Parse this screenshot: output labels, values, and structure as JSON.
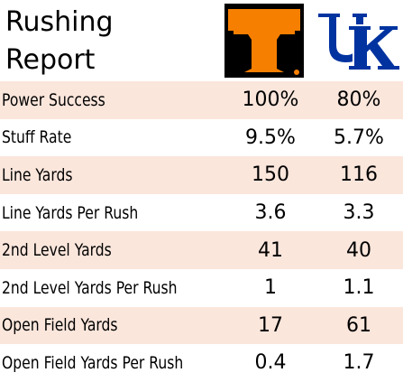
{
  "title_line1": "Rushing",
  "title_line2": "Report",
  "teams": [
    {
      "logo": "tennessee-power-t-logo",
      "color": "#f77f00"
    },
    {
      "logo": "kentucky-uk-logo",
      "color": "#0033a0"
    }
  ],
  "rows": [
    {
      "label": "Power Success",
      "tn": "100%",
      "uk": "80%"
    },
    {
      "label": "Stuff Rate",
      "tn": "9.5%",
      "uk": "5.7%"
    },
    {
      "label": "Line Yards",
      "tn": "150",
      "uk": "116"
    },
    {
      "label": "Line Yards Per Rush",
      "tn": "3.6",
      "uk": "3.3"
    },
    {
      "label": "2nd Level Yards",
      "tn": "41",
      "uk": "40"
    },
    {
      "label": "2nd Level Yards Per Rush",
      "tn": "1",
      "uk": "1.1"
    },
    {
      "label": "Open Field Yards",
      "tn": "17",
      "uk": "61"
    },
    {
      "label": "Open Field Yards Per Rush",
      "tn": "0.4",
      "uk": "1.7"
    }
  ],
  "row_shade": "#fbe6dc"
}
